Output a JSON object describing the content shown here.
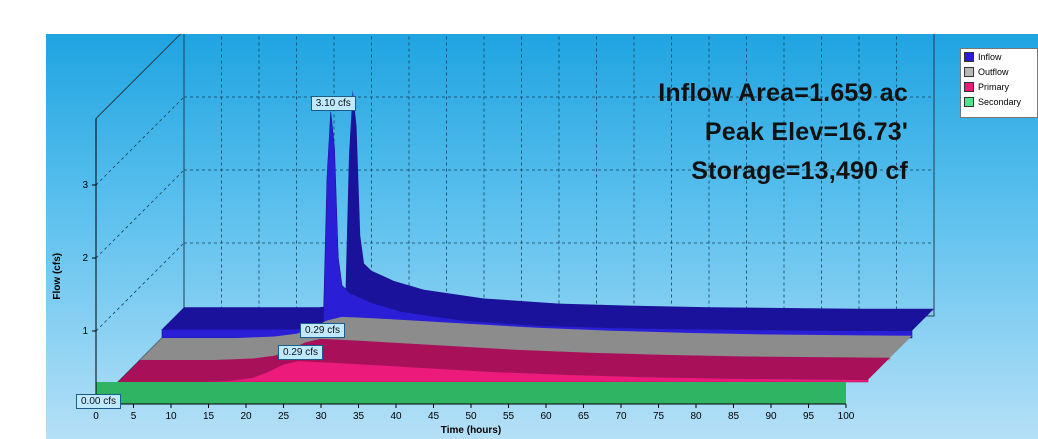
{
  "chart_data": {
    "type": "area",
    "title": "",
    "xlabel": "Time  (hours)",
    "ylabel": "Flow  (cfs)",
    "xlim": [
      0,
      100
    ],
    "ylim": [
      0,
      3.5
    ],
    "x_ticks": [
      "0",
      "5",
      "10",
      "15",
      "20",
      "25",
      "30",
      "35",
      "40",
      "45",
      "50",
      "55",
      "60",
      "65",
      "70",
      "75",
      "80",
      "85",
      "90",
      "95",
      "100"
    ],
    "y_ticks": [
      "0",
      "1",
      "2",
      "3"
    ],
    "grid": true,
    "legend_position": "top-right",
    "series": [
      {
        "name": "Inflow",
        "color": "#2a1fd6",
        "x": [
          0,
          10,
          18,
          20,
          21.5,
          22,
          22.5,
          23,
          23.5,
          24,
          25,
          28,
          32,
          40,
          50,
          60,
          70,
          80,
          90,
          100
        ],
        "y": [
          0.12,
          0.12,
          0.12,
          0.14,
          0.18,
          2.2,
          3.1,
          2.6,
          1.1,
          0.72,
          0.62,
          0.48,
          0.36,
          0.24,
          0.17,
          0.14,
          0.12,
          0.11,
          0.1,
          0.1
        ]
      },
      {
        "name": "Outflow",
        "color": "#b8b8b8",
        "x": [
          0,
          10,
          15,
          18,
          20,
          22,
          24,
          26,
          30,
          40,
          50,
          60,
          70,
          80,
          90,
          100
        ],
        "y": [
          0,
          0,
          0.02,
          0.06,
          0.14,
          0.24,
          0.29,
          0.28,
          0.26,
          0.2,
          0.14,
          0.1,
          0.07,
          0.05,
          0.04,
          0.03
        ]
      },
      {
        "name": "Primary",
        "color": "#ec1a7a",
        "x": [
          0,
          10,
          15,
          18,
          20,
          22,
          24,
          26,
          30,
          40,
          50,
          60,
          70,
          80,
          90,
          100
        ],
        "y": [
          0,
          0,
          0.02,
          0.06,
          0.14,
          0.24,
          0.29,
          0.28,
          0.26,
          0.2,
          0.14,
          0.1,
          0.07,
          0.05,
          0.04,
          0.03
        ]
      },
      {
        "name": "Secondary",
        "color": "#4fe38a",
        "x": [
          0,
          100
        ],
        "y": [
          0,
          0
        ]
      }
    ],
    "annotations": [
      {
        "series": "Inflow",
        "text": "3.10 cfs"
      },
      {
        "series": "Outflow",
        "text": "0.29 cfs"
      },
      {
        "series": "Primary",
        "text": "0.29 cfs"
      },
      {
        "series": "Secondary",
        "text": "0.00 cfs"
      }
    ],
    "info_text": [
      "Inflow Area=1.659 ac",
      "Peak Elev=16.73'",
      "Storage=13,490 cf"
    ]
  }
}
